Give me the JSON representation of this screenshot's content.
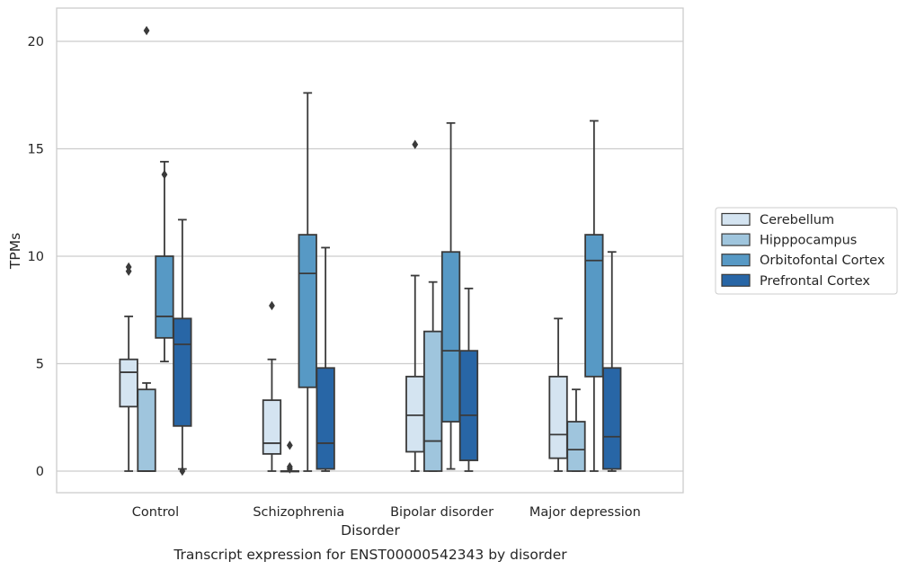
{
  "chart_data": {
    "type": "box",
    "title": "",
    "caption": "Transcript expression for ENST00000542343 by disorder",
    "xlabel": "Disorder",
    "ylabel": "TPMs",
    "ylim": [
      -1,
      21.5
    ],
    "yticks": [
      0,
      5,
      10,
      15,
      20
    ],
    "grid": "horizontal",
    "legend_position": "right",
    "categories": [
      "Control",
      "Schizophrenia",
      "Bipolar disorder",
      "Major depression"
    ],
    "series": [
      {
        "name": "Cerebellum",
        "color": "#d4e4f1",
        "boxes": [
          {
            "whislo": 0,
            "q1": 3.0,
            "med": 4.6,
            "q3": 5.2,
            "whishi": 7.2,
            "fliers": [
              9.3,
              9.5
            ]
          },
          {
            "whislo": 0,
            "q1": 0.8,
            "med": 1.3,
            "q3": 3.3,
            "whishi": 5.2,
            "fliers": [
              7.7
            ]
          },
          {
            "whislo": 0,
            "q1": 0.9,
            "med": 2.6,
            "q3": 4.4,
            "whishi": 9.1,
            "fliers": [
              15.2
            ]
          },
          {
            "whislo": 0,
            "q1": 0.6,
            "med": 1.7,
            "q3": 4.4,
            "whishi": 7.1,
            "fliers": []
          }
        ]
      },
      {
        "name": "Hipppocampus",
        "color": "#9fc5dd",
        "boxes": [
          {
            "whislo": 0,
            "q1": 0,
            "med": 0,
            "q3": 3.8,
            "whishi": 4.1,
            "fliers": [
              20.5
            ]
          },
          {
            "whislo": 0,
            "q1": 0,
            "med": 0,
            "q3": 0,
            "whishi": 0,
            "fliers": [
              0.1,
              0.2,
              1.2
            ]
          },
          {
            "whislo": 0,
            "q1": 0,
            "med": 1.4,
            "q3": 6.5,
            "whishi": 8.8,
            "fliers": []
          },
          {
            "whislo": 0,
            "q1": 0,
            "med": 1.0,
            "q3": 2.3,
            "whishi": 3.8,
            "fliers": []
          }
        ]
      },
      {
        "name": "Orbitofontal Cortex",
        "color": "#5799c5",
        "boxes": [
          {
            "whislo": 5.1,
            "q1": 6.2,
            "med": 7.2,
            "q3": 10.0,
            "whishi": 14.4,
            "fliers": [
              13.8
            ]
          },
          {
            "whislo": 0,
            "q1": 3.9,
            "med": 9.2,
            "q3": 11.0,
            "whishi": 17.6,
            "fliers": []
          },
          {
            "whislo": 0.1,
            "q1": 2.3,
            "med": 5.6,
            "q3": 10.2,
            "whishi": 16.2,
            "fliers": []
          },
          {
            "whislo": 0,
            "q1": 4.4,
            "med": 9.8,
            "q3": 11.0,
            "whishi": 16.3,
            "fliers": []
          }
        ]
      },
      {
        "name": "Prefrontal Cortex",
        "color": "#2866a6",
        "boxes": [
          {
            "whislo": 0.1,
            "q1": 2.1,
            "med": 5.9,
            "q3": 7.1,
            "whishi": 11.7,
            "fliers": [
              0
            ]
          },
          {
            "whislo": 0,
            "q1": 0.1,
            "med": 1.3,
            "q3": 4.8,
            "whishi": 10.4,
            "fliers": []
          },
          {
            "whislo": 0,
            "q1": 0.5,
            "med": 2.6,
            "q3": 5.6,
            "whishi": 8.5,
            "fliers": []
          },
          {
            "whislo": 0,
            "q1": 0.1,
            "med": 1.6,
            "q3": 4.8,
            "whishi": 10.2,
            "fliers": []
          }
        ]
      }
    ]
  }
}
